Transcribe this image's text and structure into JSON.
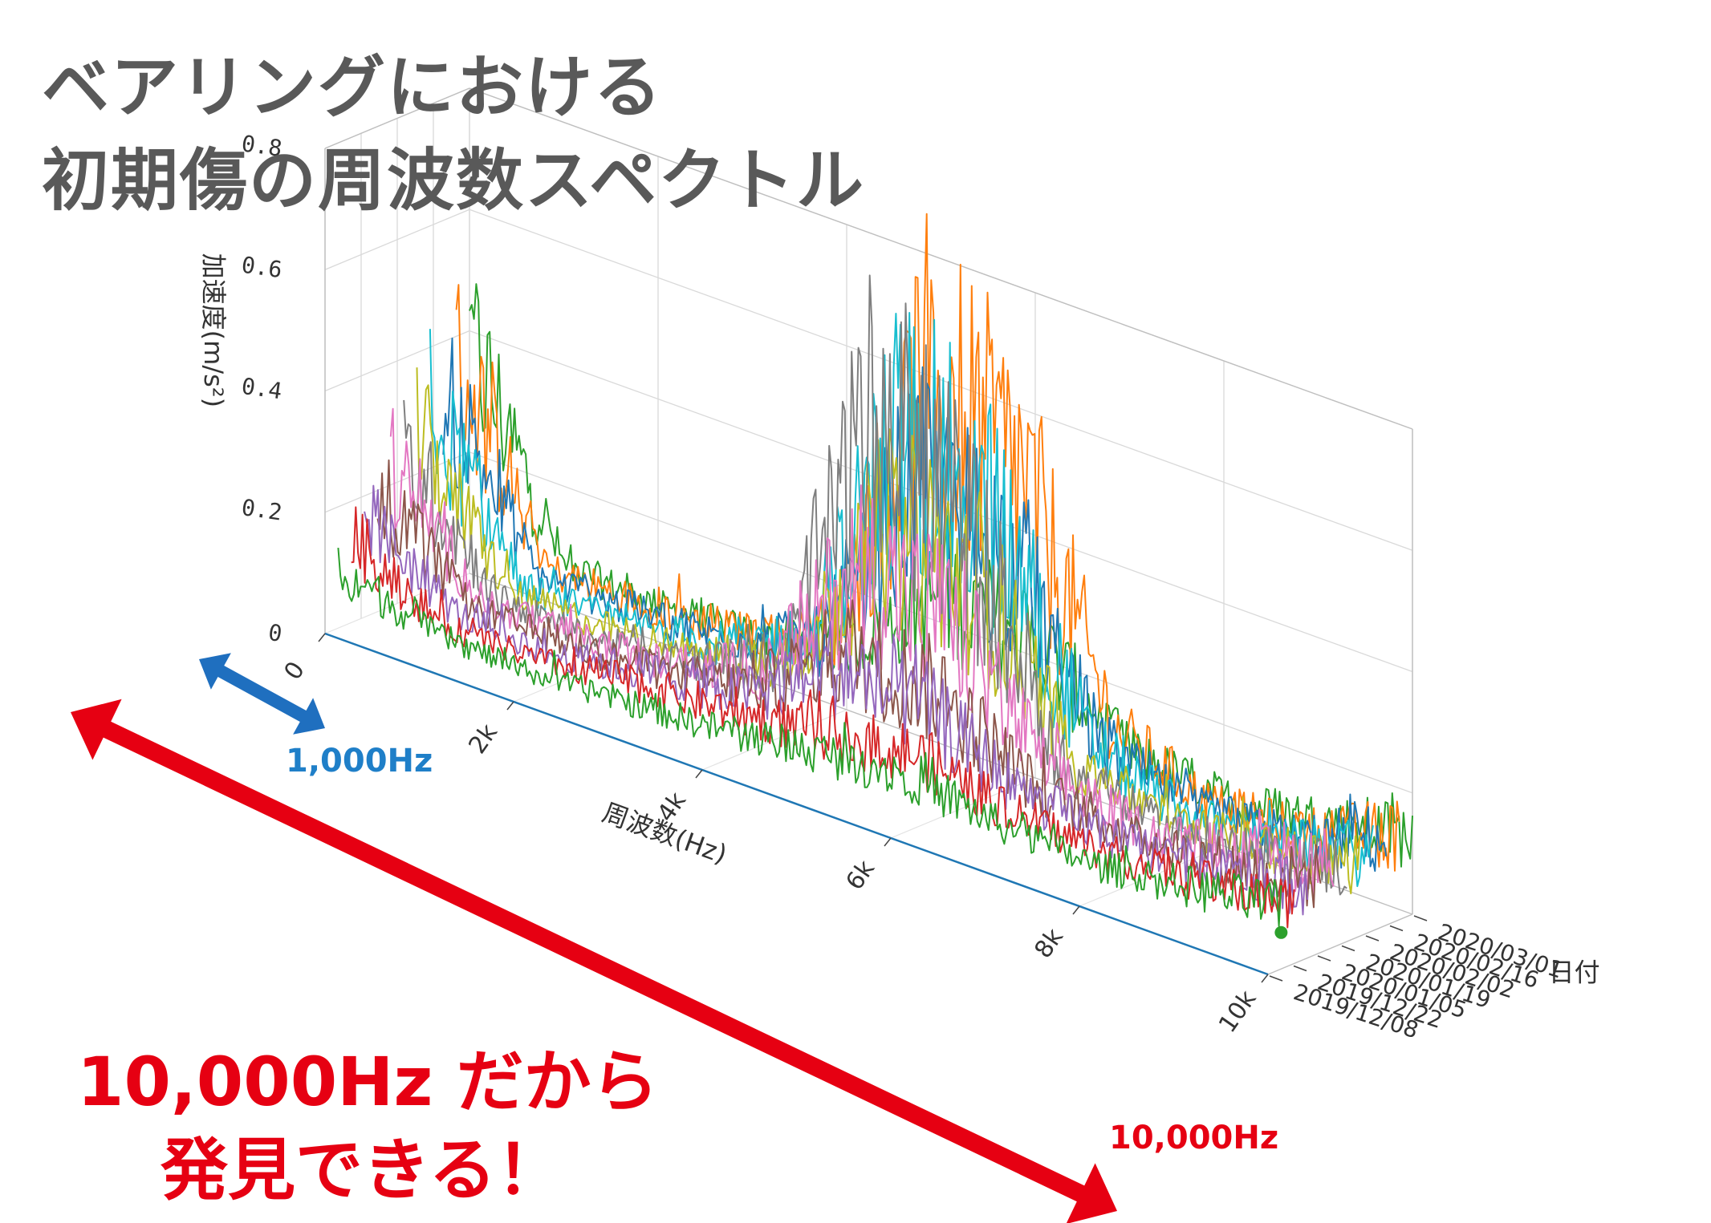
{
  "title": {
    "line1": "ベアリングにおける",
    "line2": "初期傷の周波数スペクトル"
  },
  "callouts": {
    "blue_range_label": "1,000Hz",
    "red_range_label": "10,000Hz",
    "message_line1": "10,000Hz だから",
    "message_line2": "発見できる！"
  },
  "colors": {
    "title": "#595959",
    "callout_red": "#e60012",
    "callout_blue": "#1f6fbf",
    "axis_line": "#1f77b4"
  },
  "chart_data": {
    "type": "line",
    "subtype": "3d-waterfall",
    "xlabel": "周波数(Hz)",
    "ylabel": "加速度(m/s²)",
    "zlabel": "日付",
    "x_range": [
      0,
      10000
    ],
    "x_ticks": [
      "0",
      "2k",
      "4k",
      "6k",
      "8k",
      "10k"
    ],
    "z_ticks": [
      "0",
      "0.2",
      "0.4",
      "0.6",
      "0.8"
    ],
    "ylim": [
      0,
      0.8
    ],
    "date_ticks": [
      "2020/03/01",
      "2020/02/16",
      "2020/02/02",
      "2020/01/19",
      "2020/01/05",
      "2019/12/22",
      "2019/12/08"
    ],
    "grid": true,
    "series": [
      {
        "name": "2019/12/08",
        "color": "#1f77b4",
        "x": [
          0,
          10000
        ],
        "values": [
          0,
          0
        ]
      },
      {
        "name": "",
        "color": "#2ca02c",
        "x": [
          0,
          1000,
          2000,
          3000,
          4000,
          5000,
          6000,
          7000,
          8000,
          9000,
          10000
        ],
        "values": [
          0.1,
          0.05,
          0.04,
          0.05,
          0.06,
          0.08,
          0.1,
          0.07,
          0.06,
          0.08,
          0.1
        ]
      },
      {
        "name": "2019/12/22",
        "color": "#d62728",
        "x": [
          0,
          1000,
          2000,
          3000,
          4000,
          5000,
          6000,
          7000,
          8000,
          9000,
          10000
        ],
        "values": [
          0.14,
          0.05,
          0.05,
          0.07,
          0.08,
          0.1,
          0.12,
          0.08,
          0.07,
          0.08,
          0.1
        ]
      },
      {
        "name": "",
        "color": "#9467bd",
        "x": [
          0,
          1000,
          2000,
          3000,
          4000,
          5000,
          6000,
          7000,
          8000,
          9000,
          10000
        ],
        "values": [
          0.17,
          0.06,
          0.05,
          0.08,
          0.1,
          0.2,
          0.18,
          0.1,
          0.08,
          0.09,
          0.12
        ]
      },
      {
        "name": "2020/01/05",
        "color": "#8c564b",
        "x": [
          0,
          1000,
          2000,
          3000,
          4000,
          5000,
          6000,
          7000,
          8000,
          9000,
          10000
        ],
        "values": [
          0.2,
          0.06,
          0.06,
          0.07,
          0.1,
          0.22,
          0.2,
          0.1,
          0.08,
          0.09,
          0.12
        ]
      },
      {
        "name": "",
        "color": "#e377c2",
        "x": [
          0,
          1000,
          2000,
          3000,
          4000,
          5000,
          6000,
          7000,
          8000,
          9000,
          10000
        ],
        "values": [
          0.23,
          0.06,
          0.06,
          0.07,
          0.12,
          0.35,
          0.3,
          0.12,
          0.08,
          0.1,
          0.14
        ]
      },
      {
        "name": "2020/01/19",
        "color": "#7f7f7f",
        "x": [
          0,
          1000,
          2000,
          3000,
          4000,
          5000,
          6000,
          7000,
          8000,
          9000,
          10000
        ],
        "values": [
          0.25,
          0.06,
          0.05,
          0.07,
          0.12,
          0.6,
          0.45,
          0.12,
          0.08,
          0.09,
          0.12
        ]
      },
      {
        "name": "",
        "color": "#bcbd22",
        "x": [
          0,
          1000,
          2000,
          3000,
          4000,
          5000,
          6000,
          7000,
          8000,
          9000,
          10000
        ],
        "values": [
          0.27,
          0.06,
          0.06,
          0.07,
          0.12,
          0.4,
          0.35,
          0.12,
          0.08,
          0.09,
          0.12
        ]
      },
      {
        "name": "2020/02/02",
        "color": "#17becf",
        "x": [
          0,
          1000,
          2000,
          3000,
          4000,
          5000,
          6000,
          7000,
          8000,
          9000,
          10000
        ],
        "values": [
          0.3,
          0.06,
          0.06,
          0.08,
          0.14,
          0.55,
          0.45,
          0.14,
          0.08,
          0.09,
          0.12
        ]
      },
      {
        "name": "",
        "color": "#1f77b4",
        "x": [
          0,
          1000,
          2000,
          3000,
          4000,
          5000,
          6000,
          7000,
          8000,
          9000,
          10000
        ],
        "values": [
          0.33,
          0.07,
          0.07,
          0.08,
          0.13,
          0.45,
          0.38,
          0.12,
          0.08,
          0.09,
          0.14
        ]
      },
      {
        "name": "2020/02/16",
        "color": "#ff7f0e",
        "x": [
          0,
          1000,
          2000,
          3000,
          4000,
          5000,
          6000,
          7000,
          8000,
          9000,
          10000
        ],
        "values": [
          0.36,
          0.07,
          0.07,
          0.08,
          0.14,
          0.62,
          0.5,
          0.14,
          0.08,
          0.09,
          0.14
        ]
      },
      {
        "name": "2020/03/01",
        "color": "#2ca02c",
        "x": [
          0,
          1000,
          2000,
          3000,
          4000,
          5000,
          6000,
          7000,
          8000,
          9000,
          10000
        ],
        "values": [
          0.38,
          0.07,
          0.06,
          0.07,
          0.1,
          0.25,
          0.22,
          0.1,
          0.08,
          0.1,
          0.13
        ]
      }
    ]
  }
}
